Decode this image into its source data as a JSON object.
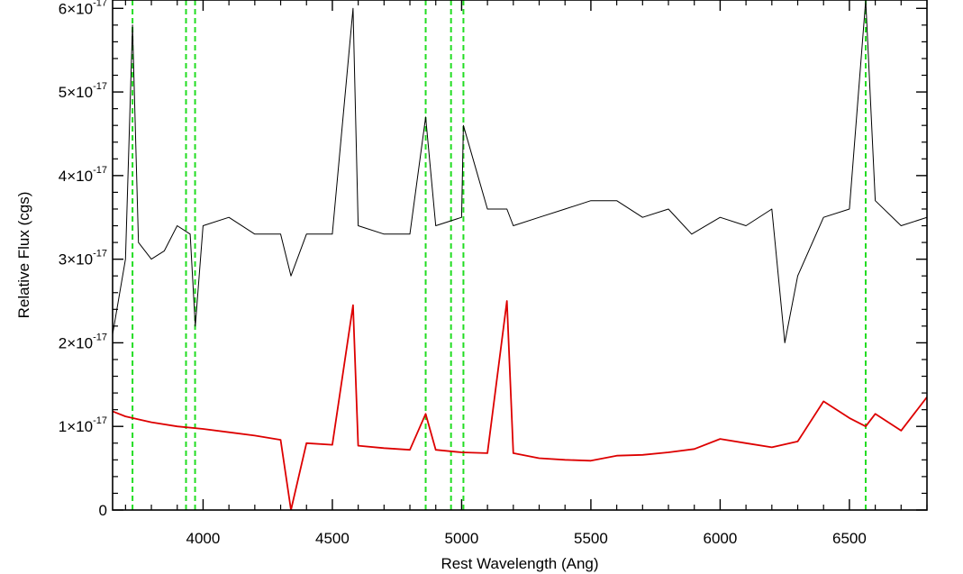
{
  "chart_data": {
    "type": "line",
    "title": "",
    "xlabel": "Rest Wavelength (Ang)",
    "ylabel": "Relative Flux (cgs)",
    "xlim": [
      3650,
      6800
    ],
    "ylim": [
      0,
      6.1e-17
    ],
    "x_ticks": [
      4000,
      4500,
      5000,
      5500,
      6000,
      6500
    ],
    "x_tick_labels": [
      "4000",
      "4500",
      "5000",
      "5500",
      "6000",
      "6500"
    ],
    "y_ticks": [
      0,
      1e-17,
      2e-17,
      3e-17,
      4e-17,
      5e-17,
      6e-17
    ],
    "y_tick_labels": [
      {
        "mantissa": "0",
        "exponent": ""
      },
      {
        "mantissa": "1×10",
        "exponent": "-17"
      },
      {
        "mantissa": "2×10",
        "exponent": "-17"
      },
      {
        "mantissa": "3×10",
        "exponent": "-17"
      },
      {
        "mantissa": "4×10",
        "exponent": "-17"
      },
      {
        "mantissa": "5×10",
        "exponent": "-17"
      },
      {
        "mantissa": "6×10",
        "exponent": "-17"
      }
    ],
    "grid": false,
    "series": [
      {
        "color": "#000000",
        "style": "noisy spectrum",
        "x": [
          3650,
          3700,
          3727,
          3750,
          3800,
          3850,
          3900,
          3950,
          3970,
          4000,
          4100,
          4200,
          4300,
          4340,
          4400,
          4500,
          4580,
          4600,
          4700,
          4800,
          4861,
          4900,
          5000,
          5007,
          5100,
          5175,
          5200,
          5300,
          5400,
          5500,
          5600,
          5700,
          5800,
          5890,
          6000,
          6100,
          6200,
          6250,
          6300,
          6400,
          6500,
          6563,
          6600,
          6700,
          6800
        ],
        "y": [
          2.1e-17,
          3e-17,
          5.8e-17,
          3.2e-17,
          3e-17,
          3.1e-17,
          3.4e-17,
          3.3e-17,
          2.2e-17,
          3.4e-17,
          3.5e-17,
          3.3e-17,
          3.3e-17,
          2.8e-17,
          3.3e-17,
          3.3e-17,
          6e-17,
          3.4e-17,
          3.3e-17,
          3.3e-17,
          4.7e-17,
          3.4e-17,
          3.5e-17,
          4.6e-17,
          3.6e-17,
          3.6e-17,
          3.4e-17,
          3.5e-17,
          3.6e-17,
          3.7e-17,
          3.7e-17,
          3.5e-17,
          3.6e-17,
          3.3e-17,
          3.5e-17,
          3.4e-17,
          3.6e-17,
          2e-17,
          2.8e-17,
          3.5e-17,
          3.6e-17,
          6.1e-17,
          3.7e-17,
          3.4e-17,
          3.5e-17
        ]
      },
      {
        "color": "#dd0000",
        "style": "model continuum",
        "x": [
          3650,
          3700,
          3800,
          3900,
          4000,
          4100,
          4200,
          4300,
          4340,
          4400,
          4500,
          4580,
          4600,
          4700,
          4800,
          4861,
          4900,
          5000,
          5100,
          5175,
          5200,
          5300,
          5400,
          5500,
          5600,
          5700,
          5800,
          5900,
          6000,
          6100,
          6200,
          6300,
          6400,
          6500,
          6563,
          6600,
          6700,
          6800
        ],
        "y": [
          1.18e-17,
          1.12e-17,
          1.05e-17,
          1e-17,
          9.7e-18,
          9.3e-18,
          8.9e-18,
          8.4e-18,
          0.0,
          8e-18,
          7.8e-18,
          2.45e-17,
          7.7e-18,
          7.4e-18,
          7.2e-18,
          1.15e-17,
          7.2e-18,
          6.9e-18,
          6.8e-18,
          2.5e-17,
          6.8e-18,
          6.2e-18,
          6e-18,
          5.9e-18,
          6.5e-18,
          6.6e-18,
          6.9e-18,
          7.3e-18,
          8.5e-18,
          8e-18,
          7.5e-18,
          8.2e-18,
          1.3e-17,
          1.1e-17,
          1e-17,
          1.15e-17,
          9.5e-18,
          1.35e-17
        ]
      }
    ],
    "vertical_lines": [
      {
        "color": "#22dd22",
        "style": "dashed",
        "x": [
          3727,
          3934,
          3969,
          4861,
          4959,
          5007,
          6563
        ]
      }
    ]
  }
}
